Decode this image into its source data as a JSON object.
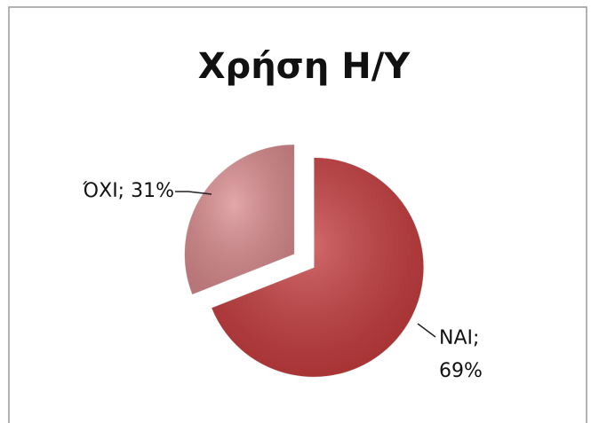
{
  "chart_data": {
    "type": "pie",
    "title": "Χρήση Η/Υ",
    "values": [
      69,
      31
    ],
    "value_labels": [
      "ΝΑΙ; 69%",
      "ΌΧΙ; 31%"
    ],
    "colors": [
      "#c43a3c",
      "#d98a8d"
    ]
  }
}
